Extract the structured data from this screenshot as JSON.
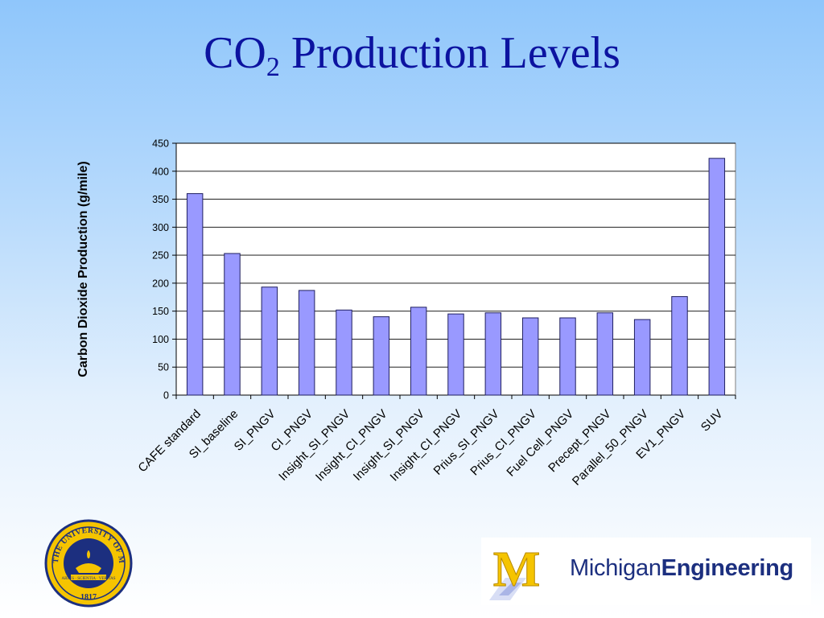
{
  "title": {
    "prefix": "CO",
    "subscript": "2",
    "suffix": " Production Levels"
  },
  "chart_data": {
    "type": "bar",
    "title": "",
    "xlabel": "",
    "ylabel": "Carbon Dioxide Production (g/mile)",
    "ylim": [
      0,
      450
    ],
    "yticks": [
      0,
      50,
      100,
      150,
      200,
      250,
      300,
      350,
      400,
      450
    ],
    "grid": true,
    "legend": "none",
    "bar_color": "#9999ff",
    "categories": [
      "CAFE standard",
      "SI_baseline",
      "SI_PNGV",
      "CI_PNGV",
      "Insight_SI_PNGV",
      "Insight_CI_PNGV",
      "Insight_SI_PNGV",
      "Insight_CI_PNGV",
      "Prius_SI_PNGV",
      "Prius_CI_PNGV",
      "Fuel Cell_PNGV",
      "Precept_PNGV",
      "Parallel_50_PNGV",
      "EV1_PNGV",
      "SUV"
    ],
    "values": [
      360,
      253,
      193,
      187,
      152,
      140,
      157,
      145,
      147,
      138,
      138,
      147,
      135,
      176,
      423
    ]
  },
  "logos": {
    "seal": {
      "ring_text": "THE UNIVERSITY OF MICHIGAN",
      "motto": "ARTES · SCIENTIA · VERITAS",
      "year": "1817"
    },
    "brand": {
      "mark": "M",
      "name_regular": "Michigan",
      "name_bold": "Engineering"
    }
  },
  "colors": {
    "title": "#0c13a0",
    "bar_fill": "#9999ff",
    "bar_stroke": "#202060",
    "brand_blue": "#1c2f7f",
    "maize": "#f5c400"
  }
}
